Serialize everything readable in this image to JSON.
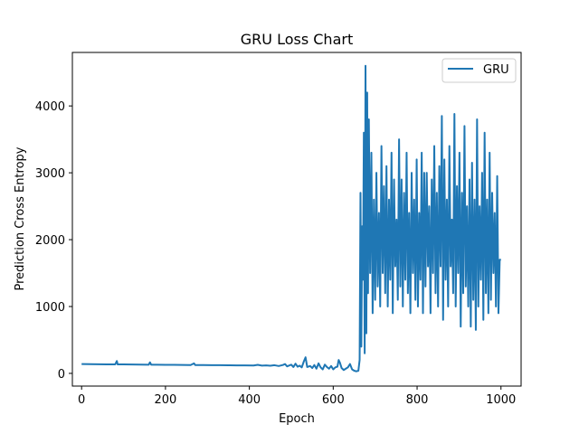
{
  "chart_data": {
    "type": "line",
    "title": "GRU Loss Chart",
    "xlabel": "Epoch",
    "ylabel": "Prediction Cross Entropy",
    "xlim": [
      -22,
      1048
    ],
    "ylim": [
      -190,
      4800
    ],
    "xticks": [
      0,
      200,
      400,
      600,
      800,
      1000
    ],
    "yticks": [
      0,
      1000,
      2000,
      3000,
      4000
    ],
    "grid": false,
    "legend": {
      "position": "top-right"
    },
    "series": [
      {
        "name": "GRU",
        "color": "#1f77b4",
        "points": [
          [
            0,
            140
          ],
          [
            20,
            138
          ],
          [
            40,
            137
          ],
          [
            60,
            135
          ],
          [
            80,
            134
          ],
          [
            84,
            185
          ],
          [
            86,
            135
          ],
          [
            100,
            134
          ],
          [
            120,
            133
          ],
          [
            140,
            132
          ],
          [
            160,
            130
          ],
          [
            163,
            165
          ],
          [
            166,
            130
          ],
          [
            180,
            129
          ],
          [
            200,
            128
          ],
          [
            220,
            127
          ],
          [
            240,
            126
          ],
          [
            260,
            125
          ],
          [
            268,
            150
          ],
          [
            271,
            124
          ],
          [
            290,
            124
          ],
          [
            310,
            123
          ],
          [
            330,
            122
          ],
          [
            350,
            121
          ],
          [
            370,
            120
          ],
          [
            390,
            119
          ],
          [
            410,
            118
          ],
          [
            420,
            128
          ],
          [
            430,
            116
          ],
          [
            440,
            120
          ],
          [
            450,
            115
          ],
          [
            460,
            122
          ],
          [
            470,
            110
          ],
          [
            480,
            125
          ],
          [
            485,
            140
          ],
          [
            490,
            105
          ],
          [
            500,
            130
          ],
          [
            505,
            95
          ],
          [
            510,
            145
          ],
          [
            515,
            100
          ],
          [
            520,
            115
          ],
          [
            525,
            90
          ],
          [
            530,
            180
          ],
          [
            534,
            240
          ],
          [
            538,
            95
          ],
          [
            545,
            110
          ],
          [
            550,
            80
          ],
          [
            555,
            125
          ],
          [
            560,
            70
          ],
          [
            565,
            150
          ],
          [
            570,
            90
          ],
          [
            575,
            60
          ],
          [
            580,
            130
          ],
          [
            585,
            95
          ],
          [
            590,
            70
          ],
          [
            595,
            110
          ],
          [
            600,
            60
          ],
          [
            605,
            90
          ],
          [
            610,
            100
          ],
          [
            613,
            200
          ],
          [
            616,
            160
          ],
          [
            620,
            80
          ],
          [
            625,
            50
          ],
          [
            630,
            70
          ],
          [
            635,
            90
          ],
          [
            640,
            140
          ],
          [
            645,
            60
          ],
          [
            650,
            40
          ],
          [
            655,
            30
          ],
          [
            660,
            40
          ],
          [
            663,
            200
          ],
          [
            665,
            2700
          ],
          [
            667,
            400
          ],
          [
            669,
            2200
          ],
          [
            671,
            1400
          ],
          [
            673,
            3600
          ],
          [
            675,
            300
          ],
          [
            677,
            4600
          ],
          [
            679,
            600
          ],
          [
            681,
            4200
          ],
          [
            683,
            1200
          ],
          [
            685,
            3800
          ],
          [
            688,
            1500
          ],
          [
            691,
            3300
          ],
          [
            694,
            900
          ],
          [
            697,
            2600
          ],
          [
            700,
            1100
          ],
          [
            703,
            3000
          ],
          [
            706,
            1300
          ],
          [
            709,
            2400
          ],
          [
            712,
            1000
          ],
          [
            715,
            3400
          ],
          [
            718,
            1500
          ],
          [
            721,
            2800
          ],
          [
            724,
            1200
          ],
          [
            727,
            3100
          ],
          [
            730,
            1000
          ],
          [
            733,
            2600
          ],
          [
            736,
            1400
          ],
          [
            739,
            3300
          ],
          [
            742,
            900
          ],
          [
            745,
            2900
          ],
          [
            748,
            1600
          ],
          [
            751,
            2300
          ],
          [
            754,
            1100
          ],
          [
            757,
            3500
          ],
          [
            760,
            1300
          ],
          [
            763,
            2900
          ],
          [
            766,
            1000
          ],
          [
            769,
            2700
          ],
          [
            772,
            1400
          ],
          [
            775,
            3300
          ],
          [
            778,
            1200
          ],
          [
            781,
            2400
          ],
          [
            784,
            900
          ],
          [
            787,
            3000
          ],
          [
            790,
            1500
          ],
          [
            793,
            2600
          ],
          [
            796,
            1100
          ],
          [
            799,
            3200
          ],
          [
            802,
            1000
          ],
          [
            805,
            2400
          ],
          [
            808,
            1400
          ],
          [
            811,
            3300
          ],
          [
            814,
            900
          ],
          [
            817,
            3000
          ],
          [
            820,
            1300
          ],
          [
            823,
            3000
          ],
          [
            826,
            1600
          ],
          [
            829,
            2500
          ],
          [
            832,
            900
          ],
          [
            835,
            2900
          ],
          [
            838,
            1500
          ],
          [
            841,
            3400
          ],
          [
            844,
            1200
          ],
          [
            847,
            2700
          ],
          [
            850,
            1000
          ],
          [
            853,
            3100
          ],
          [
            856,
            1600
          ],
          [
            859,
            3850
          ],
          [
            862,
            800
          ],
          [
            865,
            3200
          ],
          [
            868,
            1400
          ],
          [
            871,
            2600
          ],
          [
            874,
            1000
          ],
          [
            877,
            3400
          ],
          [
            880,
            1600
          ],
          [
            883,
            2300
          ],
          [
            886,
            1200
          ],
          [
            889,
            3880
          ],
          [
            892,
            1000
          ],
          [
            895,
            2800
          ],
          [
            898,
            1500
          ],
          [
            901,
            3300
          ],
          [
            904,
            700
          ],
          [
            907,
            2700
          ],
          [
            910,
            1200
          ],
          [
            913,
            3700
          ],
          [
            916,
            1300
          ],
          [
            919,
            2500
          ],
          [
            922,
            1000
          ],
          [
            925,
            2900
          ],
          [
            928,
            700
          ],
          [
            931,
            3150
          ],
          [
            934,
            1100
          ],
          [
            937,
            2600
          ],
          [
            940,
            650
          ],
          [
            943,
            3800
          ],
          [
            946,
            1000
          ],
          [
            949,
            2500
          ],
          [
            952,
            1400
          ],
          [
            955,
            3000
          ],
          [
            958,
            800
          ],
          [
            961,
            3600
          ],
          [
            964,
            1200
          ],
          [
            967,
            2600
          ],
          [
            970,
            900
          ],
          [
            973,
            3300
          ],
          [
            976,
            1100
          ],
          [
            979,
            2700
          ],
          [
            982,
            1500
          ],
          [
            985,
            2400
          ],
          [
            988,
            1000
          ],
          [
            991,
            2950
          ],
          [
            994,
            900
          ],
          [
            997,
            1700
          ],
          [
            1000,
            1700
          ]
        ]
      }
    ]
  }
}
